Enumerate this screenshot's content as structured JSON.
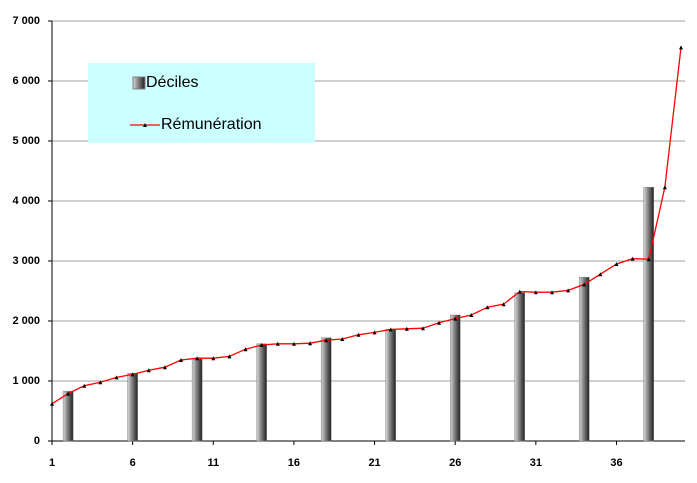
{
  "chart_data": {
    "type": "combo",
    "series": [
      {
        "name": "Déciles",
        "type": "bar",
        "color": "#808080",
        "x": [
          2,
          6,
          10,
          14,
          18,
          22,
          26,
          30,
          34,
          38
        ],
        "values": [
          830,
          1130,
          1370,
          1620,
          1720,
          1860,
          2100,
          2470,
          2730,
          4230
        ]
      },
      {
        "name": "Rémunération",
        "type": "line",
        "color": "#ff0000",
        "x": [
          1,
          2,
          3,
          4,
          5,
          6,
          7,
          8,
          9,
          10,
          11,
          12,
          13,
          14,
          15,
          16,
          17,
          18,
          19,
          20,
          21,
          22,
          23,
          24,
          25,
          26,
          27,
          28,
          29,
          30,
          31,
          32,
          33,
          34,
          35,
          36,
          37,
          38,
          39,
          40
        ],
        "values": [
          620,
          790,
          920,
          980,
          1060,
          1110,
          1180,
          1230,
          1350,
          1380,
          1380,
          1410,
          1530,
          1600,
          1620,
          1620,
          1630,
          1680,
          1700,
          1770,
          1810,
          1860,
          1870,
          1880,
          1970,
          2040,
          2100,
          2230,
          2280,
          2490,
          2480,
          2480,
          2510,
          2610,
          2780,
          2950,
          3040,
          3030,
          4230,
          6560
        ]
      }
    ],
    "xlim": [
      1,
      40
    ],
    "xticks": [
      1,
      6,
      11,
      16,
      21,
      26,
      31,
      36
    ],
    "ylim": [
      0,
      7000
    ],
    "yticks": [
      0,
      {
        "value": 1000,
        "label": "1 000"
      },
      {
        "value": 2000,
        "label": "2 000"
      },
      {
        "value": 3000,
        "label": "3 000"
      },
      {
        "value": 4000,
        "label": "4 000"
      },
      {
        "value": 5000,
        "label": "5 000"
      },
      {
        "value": 6000,
        "label": "6 000"
      },
      {
        "value": 7000,
        "label": "7 000"
      }
    ],
    "grid": true,
    "legend": "top-left",
    "legend_background": "#ccffff"
  }
}
